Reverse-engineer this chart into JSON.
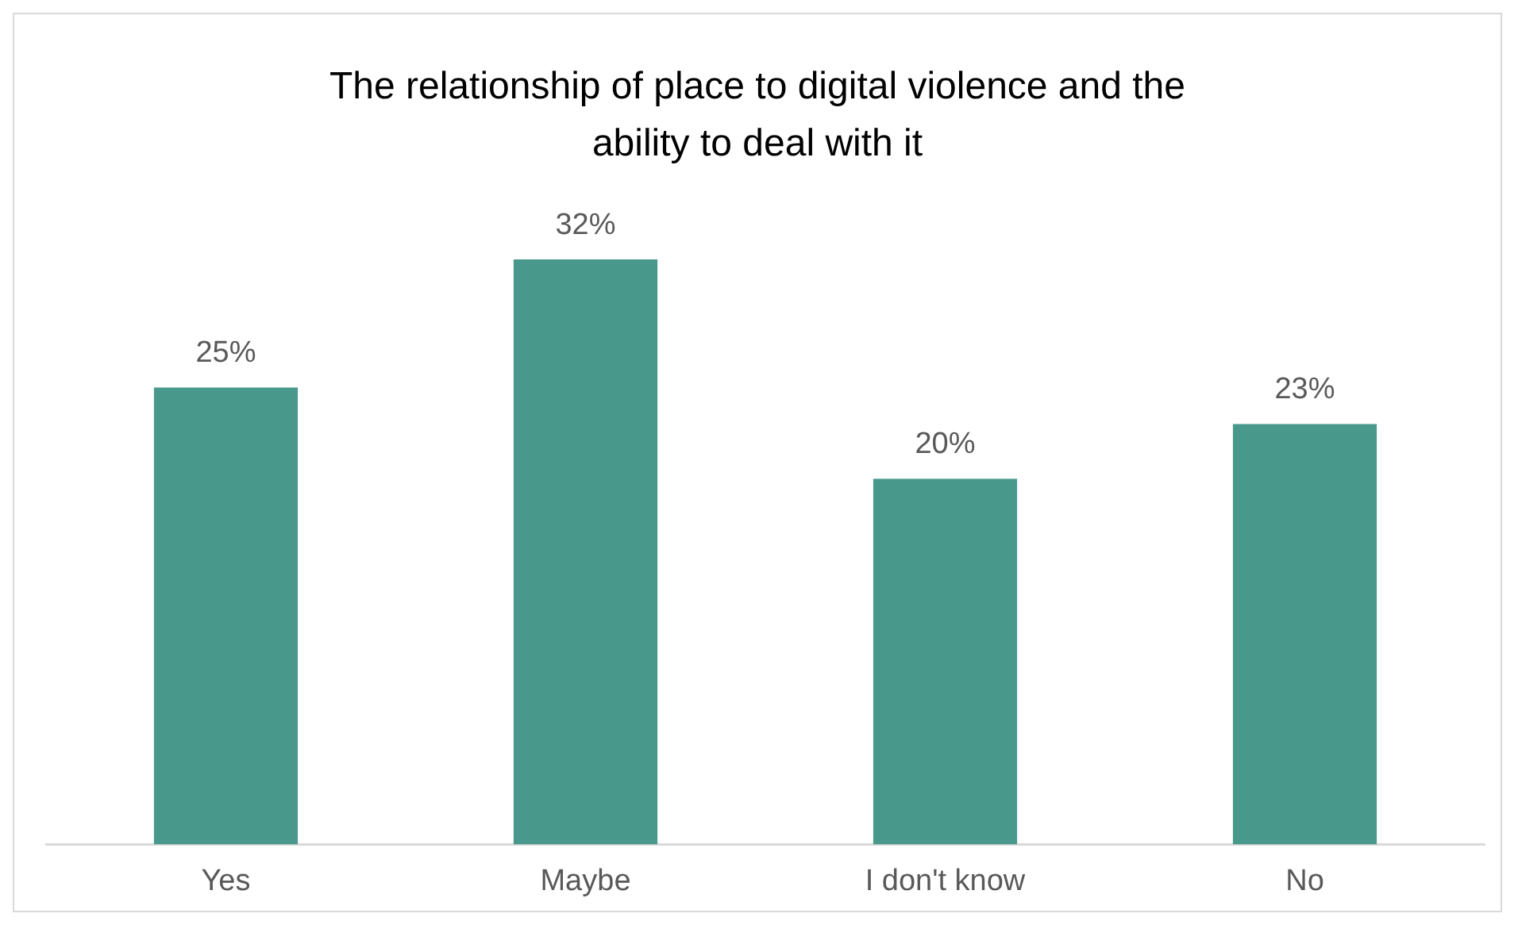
{
  "chart_data": {
    "type": "bar",
    "title": "The relationship of place to digital violence and the ability to deal with it",
    "categories": [
      "Yes",
      "Maybe",
      "I don't know",
      "No"
    ],
    "values": [
      25,
      32,
      20,
      23
    ],
    "value_labels": [
      "25%",
      "32%",
      "20%",
      "23%"
    ],
    "color": "#48998b",
    "grid": false,
    "legend": false
  }
}
